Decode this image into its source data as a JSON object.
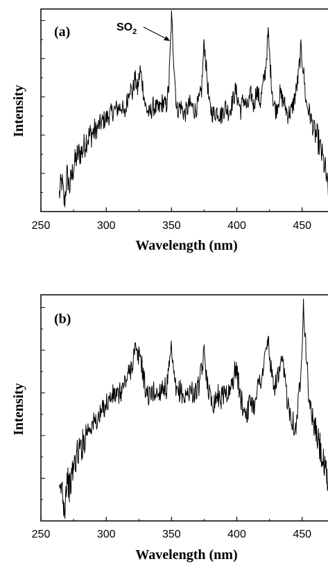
{
  "chart_data": [
    {
      "type": "line",
      "panel_label": "(a)",
      "xlabel": "Wavelength (nm)",
      "ylabel": "Intensity",
      "xlim": [
        250,
        473
      ],
      "ylim": [
        0,
        100
      ],
      "xticks": [
        250,
        300,
        350,
        400,
        450
      ],
      "yticks_labeled": false,
      "annotation": {
        "text": "SO",
        "subscript": "2",
        "x": 350,
        "y": 96
      },
      "series": [
        {
          "color": "#000000",
          "points": [
            [
              264,
              8
            ],
            [
              266,
              15
            ],
            [
              268,
              4
            ],
            [
              270,
              18
            ],
            [
              272,
              12
            ],
            [
              275,
              22
            ],
            [
              278,
              28
            ],
            [
              282,
              30
            ],
            [
              285,
              36
            ],
            [
              288,
              38
            ],
            [
              292,
              40
            ],
            [
              295,
              43
            ],
            [
              298,
              45
            ],
            [
              300,
              46
            ],
            [
              303,
              48
            ],
            [
              306,
              50
            ],
            [
              309,
              51
            ],
            [
              312,
              52
            ],
            [
              314,
              47
            ],
            [
              316,
              55
            ],
            [
              318,
              62
            ],
            [
              320,
              58
            ],
            [
              322,
              66
            ],
            [
              324,
              60
            ],
            [
              326,
              70
            ],
            [
              328,
              62
            ],
            [
              330,
              52
            ],
            [
              333,
              48
            ],
            [
              336,
              52
            ],
            [
              340,
              50
            ],
            [
              343,
              54
            ],
            [
              346,
              52
            ],
            [
              348,
              62
            ],
            [
              350,
              96
            ],
            [
              352,
              72
            ],
            [
              354,
              50
            ],
            [
              357,
              52
            ],
            [
              360,
              48
            ],
            [
              364,
              53
            ],
            [
              368,
              50
            ],
            [
              371,
              54
            ],
            [
              373,
              60
            ],
            [
              375,
              84
            ],
            [
              377,
              68
            ],
            [
              379,
              52
            ],
            [
              382,
              48
            ],
            [
              385,
              50
            ],
            [
              388,
              47
            ],
            [
              391,
              52
            ],
            [
              394,
              49
            ],
            [
              397,
              55
            ],
            [
              399,
              60
            ],
            [
              401,
              55
            ],
            [
              403,
              50
            ],
            [
              405,
              56
            ],
            [
              408,
              51
            ],
            [
              411,
              58
            ],
            [
              413,
              52
            ],
            [
              415,
              60
            ],
            [
              418,
              54
            ],
            [
              420,
              62
            ],
            [
              422,
              70
            ],
            [
              424,
              88
            ],
            [
              426,
              68
            ],
            [
              428,
              54
            ],
            [
              430,
              50
            ],
            [
              433,
              58
            ],
            [
              436,
              54
            ],
            [
              439,
              48
            ],
            [
              442,
              50
            ],
            [
              445,
              58
            ],
            [
              447,
              66
            ],
            [
              449,
              80
            ],
            [
              451,
              70
            ],
            [
              453,
              54
            ],
            [
              456,
              48
            ],
            [
              459,
              40
            ],
            [
              462,
              36
            ],
            [
              465,
              28
            ],
            [
              468,
              20
            ],
            [
              470,
              8
            ],
            [
              473,
              30
            ]
          ]
        }
      ]
    },
    {
      "type": "line",
      "panel_label": "(b)",
      "xlabel": "Wavelength (nm)",
      "ylabel": "Intensity",
      "xlim": [
        250,
        473
      ],
      "ylim": [
        0,
        100
      ],
      "xticks": [
        250,
        300,
        350,
        400,
        450
      ],
      "yticks_labeled": false,
      "series": [
        {
          "color": "#000000",
          "points": [
            [
              264,
              10
            ],
            [
              266,
              16
            ],
            [
              268,
              5
            ],
            [
              270,
              20
            ],
            [
              272,
              14
            ],
            [
              275,
              24
            ],
            [
              278,
              30
            ],
            [
              282,
              34
            ],
            [
              285,
              40
            ],
            [
              288,
              42
            ],
            [
              292,
              44
            ],
            [
              295,
              46
            ],
            [
              298,
              50
            ],
            [
              300,
              52
            ],
            [
              303,
              54
            ],
            [
              306,
              56
            ],
            [
              309,
              55
            ],
            [
              312,
              58
            ],
            [
              315,
              62
            ],
            [
              318,
              66
            ],
            [
              320,
              70
            ],
            [
              322,
              76
            ],
            [
              324,
              72
            ],
            [
              326,
              74
            ],
            [
              328,
              66
            ],
            [
              330,
              58
            ],
            [
              333,
              55
            ],
            [
              336,
              57
            ],
            [
              340,
              56
            ],
            [
              343,
              60
            ],
            [
              346,
              58
            ],
            [
              348,
              66
            ],
            [
              350,
              76
            ],
            [
              352,
              62
            ],
            [
              354,
              56
            ],
            [
              357,
              58
            ],
            [
              360,
              54
            ],
            [
              364,
              58
            ],
            [
              368,
              56
            ],
            [
              371,
              60
            ],
            [
              373,
              66
            ],
            [
              375,
              74
            ],
            [
              377,
              64
            ],
            [
              379,
              56
            ],
            [
              382,
              52
            ],
            [
              385,
              56
            ],
            [
              388,
              54
            ],
            [
              391,
              58
            ],
            [
              394,
              56
            ],
            [
              397,
              62
            ],
            [
              399,
              68
            ],
            [
              401,
              62
            ],
            [
              403,
              54
            ],
            [
              405,
              50
            ],
            [
              408,
              48
            ],
            [
              411,
              54
            ],
            [
              413,
              50
            ],
            [
              415,
              58
            ],
            [
              418,
              62
            ],
            [
              420,
              66
            ],
            [
              422,
              74
            ],
            [
              424,
              80
            ],
            [
              426,
              68
            ],
            [
              428,
              58
            ],
            [
              430,
              62
            ],
            [
              433,
              66
            ],
            [
              435,
              70
            ],
            [
              437,
              62
            ],
            [
              439,
              52
            ],
            [
              442,
              46
            ],
            [
              445,
              40
            ],
            [
              447,
              52
            ],
            [
              449,
              66
            ],
            [
              451,
              96
            ],
            [
              453,
              76
            ],
            [
              455,
              56
            ],
            [
              457,
              48
            ],
            [
              460,
              40
            ],
            [
              463,
              34
            ],
            [
              466,
              26
            ],
            [
              469,
              18
            ],
            [
              471,
              12
            ],
            [
              473,
              30
            ]
          ]
        }
      ]
    }
  ]
}
